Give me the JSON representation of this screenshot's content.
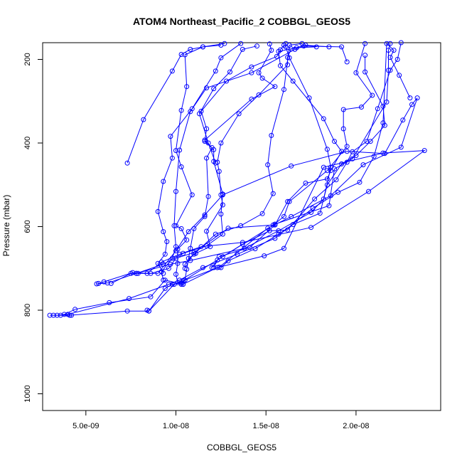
{
  "chart_data": {
    "type": "line",
    "title": "ATOM4 Northeast_Pacific_2 COBBGL_GEOS5",
    "xlabel": "COBBGL_GEOS5",
    "ylabel": "Pressure (mbar)",
    "xlim": [
      2.6e-09,
      2.47e-08
    ],
    "ylim": [
      1040,
      160
    ],
    "y_reversed": true,
    "x_ticks": [
      {
        "value": 5e-09,
        "label": "5.0e-09"
      },
      {
        "value": 1e-08,
        "label": "1.0e-08"
      },
      {
        "value": 1.5e-08,
        "label": "1.5e-08"
      },
      {
        "value": 2e-08,
        "label": "2.0e-08"
      }
    ],
    "y_ticks": [
      {
        "value": 200,
        "label": "200"
      },
      {
        "value": 400,
        "label": "400"
      },
      {
        "value": 600,
        "label": "600"
      },
      {
        "value": 800,
        "label": "800"
      },
      {
        "value": 1000,
        "label": "1000"
      }
    ],
    "series_color": "#0000ff",
    "marker": "open-circle",
    "series": [
      {
        "points": [
          [
            3e-09,
            812
          ],
          [
            3.4e-09,
            812
          ],
          [
            3.8e-09,
            810
          ],
          [
            4.4e-09,
            798
          ],
          [
            6.3e-09,
            782
          ],
          [
            8.6e-09,
            768
          ],
          [
            9.4e-09,
            728
          ],
          [
            1.04e-08,
            738
          ],
          [
            1.23e-08,
            698
          ],
          [
            1.49e-08,
            670
          ],
          [
            1.6e-08,
            652
          ],
          [
            1.82e-08,
            458
          ],
          [
            2.15e-08,
            424
          ],
          [
            2.38e-08,
            418
          ],
          [
            2.07e-08,
            516
          ],
          [
            1.75e-08,
            602
          ],
          [
            1.37e-08,
            638
          ],
          [
            1.14e-08,
            648
          ],
          [
            1.02e-08,
            666
          ],
          [
            9.2e-09,
            685
          ],
          [
            8.4e-09,
            712
          ],
          [
            7.6e-09,
            710
          ],
          [
            6e-09,
            732
          ],
          [
            5.7e-09,
            736
          ]
        ]
      },
      {
        "points": [
          [
            3.2e-09,
            812
          ],
          [
            4.1e-09,
            812
          ],
          [
            7.3e-09,
            802
          ],
          [
            8.5e-09,
            802
          ],
          [
            9.9e-09,
            738
          ],
          [
            1.05e-08,
            728
          ],
          [
            1.24e-08,
            697
          ],
          [
            1.51e-08,
            604
          ],
          [
            1.64e-08,
            576
          ],
          [
            1.86e-08,
            526
          ],
          [
            2.04e-08,
            452
          ],
          [
            2.25e-08,
            410
          ],
          [
            2.34e-08,
            292
          ],
          [
            2.31e-08,
            308
          ],
          [
            2.26e-08,
            345
          ],
          [
            2.16e-08,
            425
          ],
          [
            1.95e-08,
            420
          ],
          [
            1.64e-08,
            455
          ],
          [
            1.26e-08,
            524
          ],
          [
            1.16e-08,
            572
          ],
          [
            1.07e-08,
            612
          ],
          [
            1e-08,
            658
          ],
          [
            9e-09,
            712
          ],
          [
            7.5e-09,
            712
          ],
          [
            6.4e-09,
            736
          ]
        ]
      },
      {
        "points": [
          [
            4.2e-09,
            812
          ],
          [
            3.6e-09,
            812
          ],
          [
            4e-09,
            810
          ],
          [
            7.4e-09,
            772
          ],
          [
            9.6e-09,
            738
          ],
          [
            1.02e-08,
            728
          ],
          [
            1.15e-08,
            698
          ],
          [
            1.34e-08,
            666
          ],
          [
            1.55e-08,
            628
          ],
          [
            1.76e-08,
            556
          ],
          [
            1.9e-08,
            518
          ],
          [
            2.02e-08,
            494
          ],
          [
            2.1e-08,
            432
          ],
          [
            2.15e-08,
            352
          ],
          [
            2.17e-08,
            162
          ],
          [
            2.21e-08,
            178
          ],
          [
            2.19e-08,
            195
          ],
          [
            2.24e-08,
            238
          ],
          [
            2.3e-08,
            292
          ]
        ]
      },
      {
        "points": [
          [
            8.4e-09,
            800
          ],
          [
            8.5e-09,
            802
          ],
          [
            9.4e-09,
            748
          ],
          [
            9.8e-09,
            738
          ],
          [
            1.03e-08,
            735
          ],
          [
            1.04e-08,
            730
          ],
          [
            1.26e-08,
            672
          ],
          [
            1.55e-08,
            594
          ],
          [
            1.85e-08,
            550
          ],
          [
            1.88e-08,
            462
          ],
          [
            1.98e-08,
            438
          ],
          [
            2.17e-08,
            302
          ],
          [
            2.18e-08,
            226
          ],
          [
            2.18e-08,
            178
          ],
          [
            2.19e-08,
            162
          ]
        ]
      },
      {
        "points": [
          [
            5.6e-09,
            737
          ],
          [
            6.2e-09,
            735
          ],
          [
            7.8e-09,
            712
          ],
          [
            9.7e-09,
            690
          ],
          [
            1.08e-08,
            681
          ],
          [
            1.38e-08,
            652
          ],
          [
            1.57e-08,
            610
          ],
          [
            1.75e-08,
            566
          ],
          [
            1.82e-08,
            534
          ],
          [
            1.86e-08,
            458
          ],
          [
            1.84e-08,
            415
          ],
          [
            1.74e-08,
            292
          ],
          [
            1.63e-08,
            196
          ],
          [
            1.61e-08,
            170
          ],
          [
            1.61e-08,
            162
          ]
        ]
      },
      {
        "points": [
          [
            7.9e-09,
            712
          ],
          [
            8.6e-09,
            712
          ],
          [
            9.6e-09,
            700
          ],
          [
            1e-08,
            676
          ],
          [
            1.1e-08,
            662
          ],
          [
            1.29e-08,
            604
          ],
          [
            1.54e-08,
            596
          ],
          [
            1.6e-08,
            576
          ],
          [
            1.63e-08,
            540
          ],
          [
            1.84e-08,
            466
          ],
          [
            1.95e-08,
            408
          ],
          [
            1.93e-08,
            366
          ],
          [
            1.93e-08,
            320
          ],
          [
            2.03e-08,
            314
          ],
          [
            2.09e-08,
            286
          ],
          [
            2e-08,
            232
          ],
          [
            2.05e-08,
            162
          ]
        ]
      },
      {
        "points": [
          [
            7.8e-09,
            712
          ],
          [
            9.3e-09,
            690
          ],
          [
            1.04e-08,
            664
          ],
          [
            1.17e-08,
            646
          ],
          [
            1.26e-08,
            618
          ],
          [
            1.25e-08,
            570
          ],
          [
            1.26e-08,
            522
          ],
          [
            1.21e-08,
            444
          ],
          [
            1.21e-08,
            416
          ],
          [
            1.16e-08,
            393
          ],
          [
            1.42e-08,
            295
          ],
          [
            1.55e-08,
            265
          ],
          [
            1.48e-08,
            245
          ],
          [
            1.46e-08,
            232
          ],
          [
            1.53e-08,
            178
          ],
          [
            1.52e-08,
            163
          ]
        ]
      },
      {
        "points": [
          [
            9.3e-09,
            712
          ],
          [
            9e-09,
            688
          ],
          [
            9.4e-09,
            666
          ],
          [
            9.5e-09,
            636
          ],
          [
            9.3e-09,
            612
          ],
          [
            9e-09,
            564
          ],
          [
            9.3e-09,
            492
          ],
          [
            9.8e-09,
            436
          ],
          [
            9.7e-09,
            384
          ],
          [
            1.09e-08,
            318
          ],
          [
            1.22e-08,
            228
          ],
          [
            1.25e-08,
            196
          ],
          [
            1.36e-08,
            162
          ]
        ]
      },
      {
        "points": [
          [
            1.04e-08,
            738
          ],
          [
            1.01e-08,
            734
          ],
          [
            1e-08,
            714
          ],
          [
            1.01e-08,
            688
          ],
          [
            1.01e-08,
            654
          ],
          [
            1.06e-08,
            632
          ],
          [
            1.03e-08,
            605
          ],
          [
            1e-08,
            598
          ],
          [
            1.09e-08,
            524
          ],
          [
            1.03e-08,
            457
          ],
          [
            1e-08,
            418
          ],
          [
            1.03e-08,
            322
          ],
          [
            1.06e-08,
            265
          ],
          [
            1.05e-08,
            189
          ],
          [
            1.15e-08,
            170
          ],
          [
            1.27e-08,
            162
          ]
        ]
      },
      {
        "points": [
          [
            9.3e-09,
            728
          ],
          [
            9.2e-09,
            708
          ],
          [
            9.8e-09,
            676
          ],
          [
            1e-08,
            648
          ],
          [
            9.9e-09,
            598
          ],
          [
            1e-08,
            516
          ],
          [
            1.02e-08,
            417
          ],
          [
            1.08e-08,
            325
          ],
          [
            1.17e-08,
            268
          ],
          [
            1.42e-08,
            232
          ],
          [
            1.66e-08,
            176
          ],
          [
            1.71e-08,
            168
          ],
          [
            1.92e-08,
            170
          ],
          [
            1.95e-08,
            206
          ]
        ]
      },
      {
        "points": [
          [
            1.03e-08,
            738
          ],
          [
            1.05e-08,
            728
          ],
          [
            1.06e-08,
            702
          ],
          [
            1.08e-08,
            652
          ],
          [
            1.1e-08,
            605
          ],
          [
            1.16e-08,
            576
          ],
          [
            1.18e-08,
            528
          ],
          [
            1.17e-08,
            436
          ],
          [
            1.2e-08,
            411
          ],
          [
            1.16e-08,
            396
          ],
          [
            1.17e-08,
            366
          ],
          [
            1.14e-08,
            324
          ],
          [
            1.28e-08,
            252
          ],
          [
            1.42e-08,
            218
          ],
          [
            1.56e-08,
            193
          ],
          [
            1.58e-08,
            177
          ],
          [
            1.6e-08,
            166
          ]
        ]
      },
      {
        "points": [
          [
            1.05e-08,
            700
          ],
          [
            1.05e-08,
            690
          ],
          [
            1.1e-08,
            666
          ],
          [
            1.22e-08,
            618
          ],
          [
            1.36e-08,
            598
          ],
          [
            1.48e-08,
            569
          ],
          [
            1.54e-08,
            521
          ],
          [
            1.51e-08,
            452
          ],
          [
            1.53e-08,
            382
          ],
          [
            1.6e-08,
            272
          ],
          [
            1.63e-08,
            166
          ],
          [
            1.7e-08,
            162
          ]
        ]
      },
      {
        "points": [
          [
            1.07e-08,
            676
          ],
          [
            1.11e-08,
            664
          ],
          [
            1.19e-08,
            648
          ],
          [
            1.17e-08,
            611
          ],
          [
            1.26e-08,
            548
          ],
          [
            1.25e-08,
            524
          ],
          [
            1.24e-08,
            468
          ],
          [
            1.23e-08,
            446
          ],
          [
            1.25e-08,
            400
          ],
          [
            1.35e-08,
            330
          ],
          [
            1.46e-08,
            285
          ],
          [
            1.62e-08,
            213
          ],
          [
            1.62e-08,
            195
          ],
          [
            1.64e-08,
            175
          ],
          [
            1.72e-08,
            166
          ],
          [
            1.85e-08,
            170
          ]
        ]
      },
      {
        "points": [
          [
            1.2e-08,
            698
          ],
          [
            1.23e-08,
            680
          ],
          [
            1.37e-08,
            642
          ],
          [
            1.52e-08,
            610
          ],
          [
            1.62e-08,
            608
          ],
          [
            1.77e-08,
            534
          ],
          [
            1.89e-08,
            488
          ],
          [
            1.95e-08,
            446
          ],
          [
            1.98e-08,
            421
          ],
          [
            2.06e-08,
            396
          ],
          [
            2.12e-08,
            318
          ],
          [
            2.19e-08,
            226
          ],
          [
            2.23e-08,
            200
          ],
          [
            2.25e-08,
            160
          ]
        ]
      },
      {
        "points": [
          [
            1.21e-08,
            698
          ],
          [
            1.24e-08,
            672
          ],
          [
            1.41e-08,
            650
          ],
          [
            1.55e-08,
            596
          ],
          [
            1.62e-08,
            540
          ],
          [
            1.72e-08,
            496
          ],
          [
            1.84e-08,
            486
          ],
          [
            1.86e-08,
            466
          ],
          [
            1.92e-08,
            420
          ],
          [
            1.88e-08,
            396
          ],
          [
            1.82e-08,
            342
          ],
          [
            1.65e-08,
            252
          ],
          [
            1.58e-08,
            215
          ],
          [
            1.57e-08,
            181
          ],
          [
            1.67e-08,
            172
          ],
          [
            1.78e-08,
            170
          ]
        ]
      },
      {
        "points": [
          [
            1.25e-08,
            698
          ],
          [
            1.29e-08,
            682
          ],
          [
            1.44e-08,
            653
          ],
          [
            1.57e-08,
            618
          ],
          [
            1.65e-08,
            595
          ],
          [
            1.8e-08,
            568
          ],
          [
            1.84e-08,
            500
          ],
          [
            1.92e-08,
            450
          ],
          [
            2e-08,
            430
          ],
          [
            2.08e-08,
            396
          ],
          [
            2.16e-08,
            358
          ],
          [
            2.15e-08,
            312
          ],
          [
            2.05e-08,
            230
          ],
          [
            2.05e-08,
            190
          ]
        ]
      },
      {
        "points": [
          [
            7.3e-09,
            448
          ],
          [
            8.2e-09,
            344
          ],
          [
            9.8e-09,
            228
          ],
          [
            1.03e-08,
            188
          ],
          [
            1.08e-08,
            176
          ],
          [
            1.15e-08,
            170
          ],
          [
            1.25e-08,
            166
          ]
        ]
      },
      {
        "points": [
          [
            1.22e-08,
            448
          ],
          [
            1.18e-08,
            400
          ],
          [
            1.13e-08,
            330
          ],
          [
            1.21e-08,
            270
          ],
          [
            1.3e-08,
            230
          ],
          [
            1.37e-08,
            176
          ],
          [
            1.45e-08,
            168
          ]
        ]
      }
    ]
  }
}
